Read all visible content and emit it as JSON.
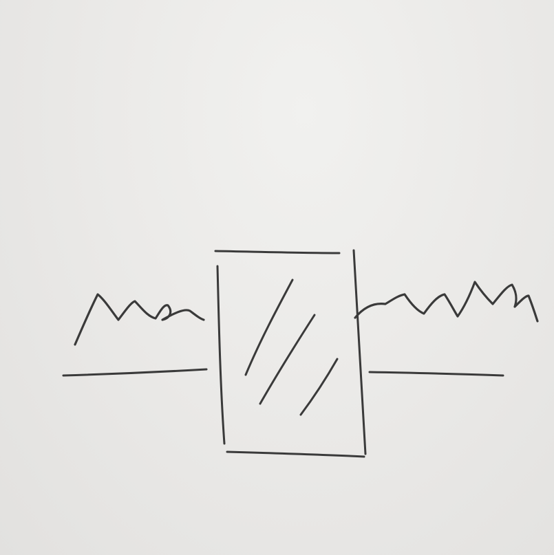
{
  "sketch": {
    "ink_color": "#3a3a3a",
    "paper_color": "#ebeae8",
    "elements": [
      "input-signal-waveform",
      "input-baseline",
      "filter-block-with-diagonal-hatching",
      "output-signal-waveform",
      "output-baseline"
    ]
  }
}
